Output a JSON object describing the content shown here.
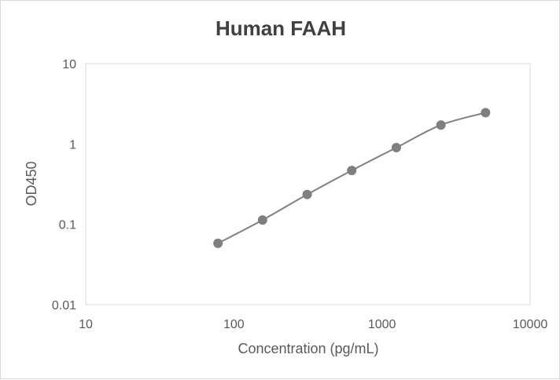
{
  "chart_data": {
    "type": "scatter",
    "title": "Human FAAH",
    "xlabel": "Concentration (pg/mL)",
    "ylabel": "OD450",
    "x_scale": "log",
    "y_scale": "log",
    "xlim": [
      10,
      10000
    ],
    "ylim": [
      0.01,
      10
    ],
    "x_ticks": [
      "10",
      "100",
      "1000",
      "10000"
    ],
    "y_ticks": [
      "0.01",
      "0.1",
      "1",
      "10"
    ],
    "grid": "horizontal-none",
    "series": [
      {
        "x": [
          78.125,
          156.25,
          312.5,
          625,
          1250,
          2500,
          5000
        ],
        "y": [
          0.058,
          0.113,
          0.235,
          0.468,
          0.9,
          1.72,
          2.45
        ],
        "color": "#7f7f7f",
        "marker": "circle",
        "line": "smooth"
      }
    ]
  }
}
